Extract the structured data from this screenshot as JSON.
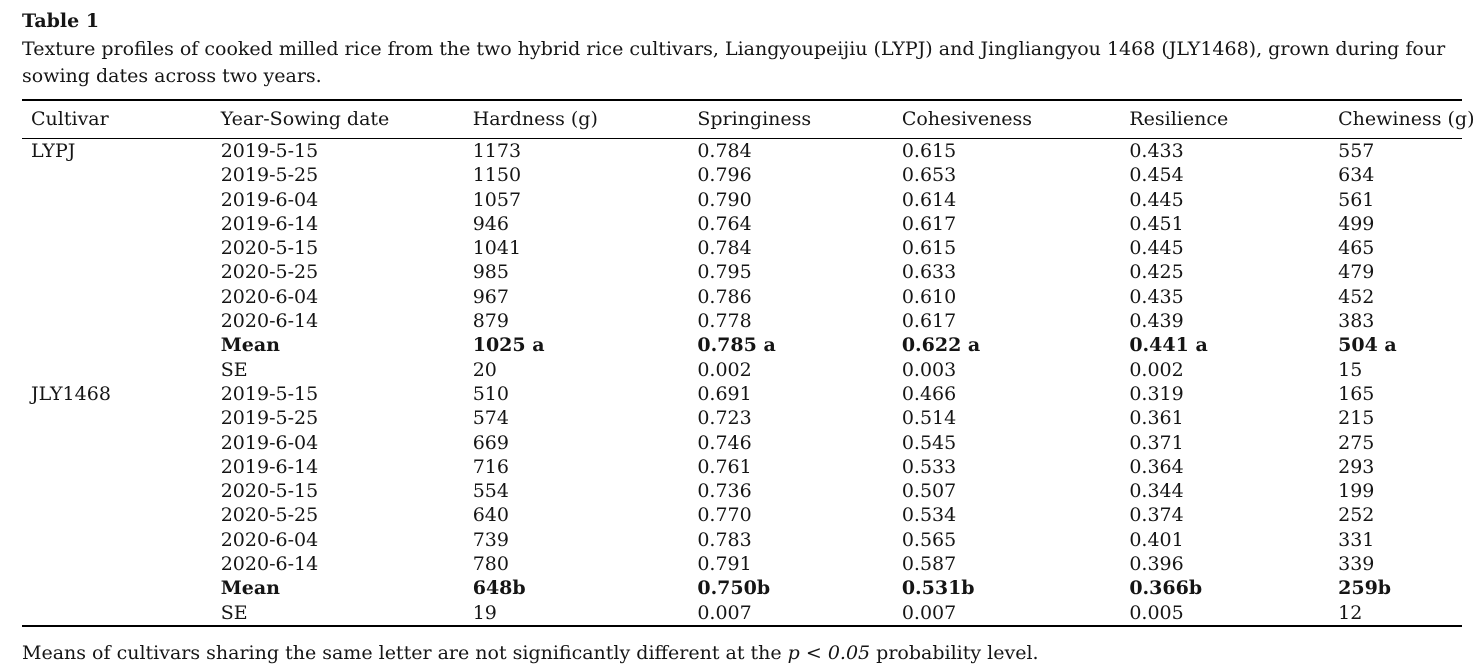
{
  "page": {
    "table_label": "Table 1",
    "caption": "Texture profiles of cooked milled rice from the two hybrid rice cultivars, Liangyoupeijiu (LYPJ) and Jingliangyou 1468 (JLY1468), grown during four sowing dates across two years.",
    "footnote": {
      "pre": "Means of cultivars sharing the same letter are not significantly different at the ",
      "emph": "p < 0.05",
      "post": " probability level."
    }
  },
  "table": {
    "columns": [
      "Cultivar",
      "Year-Sowing date",
      "Hardness (g)",
      "Springiness",
      "Cohesiveness",
      "Resilience",
      "Chewiness (g)"
    ],
    "cell_names": [
      "cultivar",
      "date",
      "hardness",
      "springiness",
      "cohesiveness",
      "resilience",
      "chewiness"
    ],
    "rows": [
      {
        "cells": [
          "LYPJ",
          "2019-5-15",
          "1173",
          "0.784",
          "0.615",
          "0.433",
          "557"
        ],
        "bold": false
      },
      {
        "cells": [
          "",
          "2019-5-25",
          "1150",
          "0.796",
          "0.653",
          "0.454",
          "634"
        ],
        "bold": false
      },
      {
        "cells": [
          "",
          "2019-6-04",
          "1057",
          "0.790",
          "0.614",
          "0.445",
          "561"
        ],
        "bold": false
      },
      {
        "cells": [
          "",
          "2019-6-14",
          "946",
          "0.764",
          "0.617",
          "0.451",
          "499"
        ],
        "bold": false
      },
      {
        "cells": [
          "",
          "2020-5-15",
          "1041",
          "0.784",
          "0.615",
          "0.445",
          "465"
        ],
        "bold": false
      },
      {
        "cells": [
          "",
          "2020-5-25",
          "985",
          "0.795",
          "0.633",
          "0.425",
          "479"
        ],
        "bold": false
      },
      {
        "cells": [
          "",
          "2020-6-04",
          "967",
          "0.786",
          "0.610",
          "0.435",
          "452"
        ],
        "bold": false
      },
      {
        "cells": [
          "",
          "2020-6-14",
          "879",
          "0.778",
          "0.617",
          "0.439",
          "383"
        ],
        "bold": false
      },
      {
        "cells": [
          "",
          "Mean",
          "1025 a",
          "0.785 a",
          "0.622 a",
          "0.441 a",
          "504 a"
        ],
        "bold": true
      },
      {
        "cells": [
          "",
          "SE",
          "20",
          "0.002",
          "0.003",
          "0.002",
          "15"
        ],
        "bold": false
      },
      {
        "cells": [
          "JLY1468",
          "2019-5-15",
          "510",
          "0.691",
          "0.466",
          "0.319",
          "165"
        ],
        "bold": false
      },
      {
        "cells": [
          "",
          "2019-5-25",
          "574",
          "0.723",
          "0.514",
          "0.361",
          "215"
        ],
        "bold": false
      },
      {
        "cells": [
          "",
          "2019-6-04",
          "669",
          "0.746",
          "0.545",
          "0.371",
          "275"
        ],
        "bold": false
      },
      {
        "cells": [
          "",
          "2019-6-14",
          "716",
          "0.761",
          "0.533",
          "0.364",
          "293"
        ],
        "bold": false
      },
      {
        "cells": [
          "",
          "2020-5-15",
          "554",
          "0.736",
          "0.507",
          "0.344",
          "199"
        ],
        "bold": false
      },
      {
        "cells": [
          "",
          "2020-5-25",
          "640",
          "0.770",
          "0.534",
          "0.374",
          "252"
        ],
        "bold": false
      },
      {
        "cells": [
          "",
          "2020-6-04",
          "739",
          "0.783",
          "0.565",
          "0.401",
          "331"
        ],
        "bold": false
      },
      {
        "cells": [
          "",
          "2020-6-14",
          "780",
          "0.791",
          "0.587",
          "0.396",
          "339"
        ],
        "bold": false
      },
      {
        "cells": [
          "",
          "Mean",
          "648b",
          "0.750b",
          "0.531b",
          "0.366b",
          "259b"
        ],
        "bold": true
      },
      {
        "cells": [
          "",
          "SE",
          "19",
          "0.007",
          "0.007",
          "0.005",
          "12"
        ],
        "bold": false
      }
    ]
  }
}
